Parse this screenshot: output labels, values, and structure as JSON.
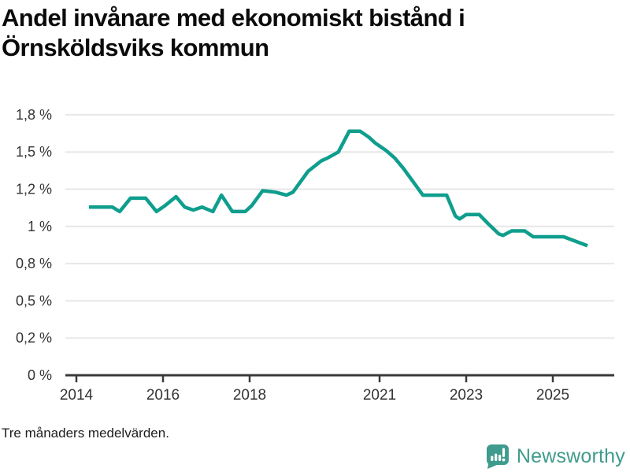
{
  "title": {
    "line1": "Andel invånare med ekonomiskt bistånd i",
    "line2": "Örnsköldsviks kommun"
  },
  "footnote": "Tre månaders medelvärden.",
  "branding": {
    "name": "Newsworthy",
    "logo_icon": "bar-chart-speech-bubble-icon",
    "color": "#3f9b8d"
  },
  "colors": {
    "line": "#0f9e8d",
    "grid": "#e7e7e7",
    "axis": "#3a3a3a",
    "tick_text": "#333333"
  },
  "chart_data": {
    "type": "line",
    "title": "Andel invånare med ekonomiskt bistånd i Örnsköldsviks kommun",
    "subtitle_note": "Tre månaders medelvärden.",
    "unit": "%",
    "grid": true,
    "legend": false,
    "x_range": [
      2013.75,
      2026.4
    ],
    "ylim": [
      0,
      1.83
    ],
    "y_ticks": [
      {
        "label": "0 %",
        "value": 0
      },
      {
        "label": "0,2 %",
        "value": 0.25
      },
      {
        "label": "0,5 %",
        "value": 0.5
      },
      {
        "label": "0,8 %",
        "value": 0.75
      },
      {
        "label": "1 %",
        "value": 1
      },
      {
        "label": "1,2 %",
        "value": 1.25
      },
      {
        "label": "1,5 %",
        "value": 1.5
      },
      {
        "label": "1,8 %",
        "value": 1.75
      }
    ],
    "x_ticks": [
      {
        "label": "2014",
        "year": 2014
      },
      {
        "label": "2016",
        "year": 2016
      },
      {
        "label": "2018",
        "year": 2018
      },
      {
        "label": "2021",
        "year": 2021
      },
      {
        "label": "2023",
        "year": 2023
      },
      {
        "label": "2025",
        "year": 2025
      }
    ],
    "series": [
      {
        "name": "Andel invånare med ekonomiskt bistånd",
        "points": [
          [
            2014.29,
            1.13
          ],
          [
            2014.83,
            1.13
          ],
          [
            2015.0,
            1.1
          ],
          [
            2015.25,
            1.19
          ],
          [
            2015.6,
            1.19
          ],
          [
            2015.85,
            1.1
          ],
          [
            2016.05,
            1.14
          ],
          [
            2016.3,
            1.2
          ],
          [
            2016.5,
            1.13
          ],
          [
            2016.7,
            1.11
          ],
          [
            2016.9,
            1.13
          ],
          [
            2017.15,
            1.1
          ],
          [
            2017.35,
            1.21
          ],
          [
            2017.6,
            1.1
          ],
          [
            2017.9,
            1.1
          ],
          [
            2018.05,
            1.14
          ],
          [
            2018.3,
            1.24
          ],
          [
            2018.6,
            1.23
          ],
          [
            2018.85,
            1.21
          ],
          [
            2019.0,
            1.23
          ],
          [
            2019.35,
            1.37
          ],
          [
            2019.65,
            1.44
          ],
          [
            2019.8,
            1.46
          ],
          [
            2020.05,
            1.5
          ],
          [
            2020.3,
            1.64
          ],
          [
            2020.55,
            1.64
          ],
          [
            2020.75,
            1.6
          ],
          [
            2020.9,
            1.56
          ],
          [
            2021.0,
            1.54
          ],
          [
            2021.15,
            1.51
          ],
          [
            2021.35,
            1.46
          ],
          [
            2021.55,
            1.39
          ],
          [
            2021.8,
            1.29
          ],
          [
            2022.0,
            1.21
          ],
          [
            2022.55,
            1.21
          ],
          [
            2022.75,
            1.07
          ],
          [
            2022.85,
            1.05
          ],
          [
            2023.0,
            1.08
          ],
          [
            2023.3,
            1.08
          ],
          [
            2023.5,
            1.02
          ],
          [
            2023.75,
            0.95
          ],
          [
            2023.85,
            0.94
          ],
          [
            2024.05,
            0.97
          ],
          [
            2024.35,
            0.97
          ],
          [
            2024.55,
            0.93
          ],
          [
            2025.25,
            0.93
          ],
          [
            2025.8,
            0.87
          ]
        ]
      }
    ]
  }
}
